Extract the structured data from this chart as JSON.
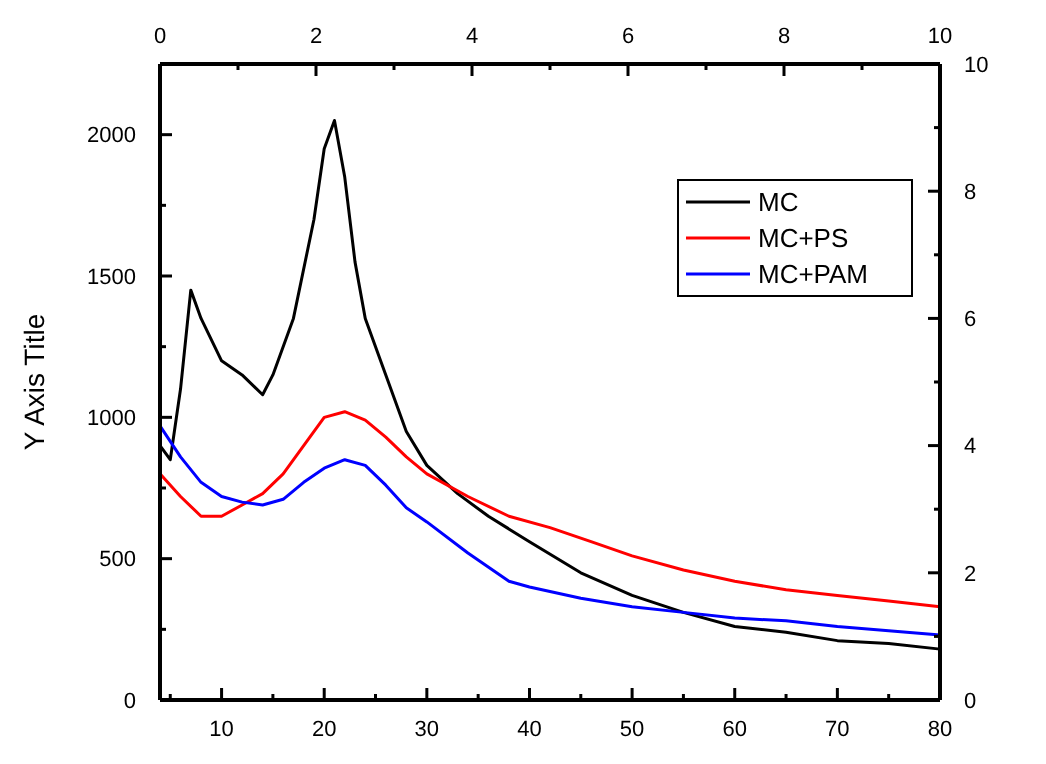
{
  "chart_data": {
    "type": "line",
    "ylabel": "Y Axis Title",
    "xlim": [
      4,
      80
    ],
    "xticks": [
      {
        "value": 5,
        "label": null
      },
      10,
      {
        "value": 15,
        "label": null
      },
      20,
      {
        "value": 25,
        "label": null
      },
      30,
      {
        "value": 35,
        "label": null
      },
      40,
      {
        "value": 45,
        "label": null
      },
      50,
      {
        "value": 55,
        "label": null
      },
      60,
      {
        "value": 65,
        "label": null
      },
      70,
      {
        "value": 75,
        "label": null
      },
      80
    ],
    "ylim": [
      0,
      2250
    ],
    "yticks": [
      0,
      {
        "value": 250,
        "label": null
      },
      500,
      {
        "value": 750,
        "label": null
      },
      1000,
      {
        "value": 1250,
        "label": null
      },
      1500,
      {
        "value": 1750,
        "label": null
      },
      2000
    ],
    "x2lim": [
      0,
      10
    ],
    "x2ticks": [
      0,
      {
        "value": 1,
        "label": null
      },
      2,
      {
        "value": 3,
        "label": null
      },
      4,
      {
        "value": 5,
        "label": null
      },
      6,
      {
        "value": 7,
        "label": null
      },
      8,
      {
        "value": 9,
        "label": null
      },
      10
    ],
    "y2lim": [
      0,
      10
    ],
    "y2ticks": [
      0,
      {
        "value": 1,
        "label": null
      },
      2,
      {
        "value": 3,
        "label": null
      },
      4,
      {
        "value": 5,
        "label": null
      },
      6,
      {
        "value": 7,
        "label": null
      },
      8,
      {
        "value": 9,
        "label": null
      },
      10
    ],
    "legend": "top right",
    "grid": false,
    "marker": "none",
    "line_style": "solid",
    "series": [
      {
        "name": "MC",
        "color": "#000000",
        "x": [
          4,
          5,
          6,
          7,
          8,
          10,
          12,
          14,
          15,
          17,
          19,
          20,
          21,
          22,
          23,
          24,
          26,
          28,
          30,
          33,
          36,
          40,
          45,
          50,
          55,
          60,
          65,
          70,
          75,
          80
        ],
        "values": [
          900,
          850,
          1100,
          1450,
          1350,
          1200,
          1150,
          1080,
          1150,
          1350,
          1700,
          1950,
          2050,
          1850,
          1550,
          1350,
          1150,
          950,
          830,
          730,
          650,
          560,
          450,
          370,
          310,
          260,
          240,
          210,
          200,
          180
        ]
      },
      {
        "name": "MC+PS",
        "color": "#ff0000",
        "x": [
          4,
          6,
          8,
          10,
          12,
          14,
          16,
          18,
          20,
          22,
          24,
          26,
          28,
          30,
          34,
          38,
          42,
          46,
          50,
          55,
          60,
          65,
          70,
          75,
          80
        ],
        "values": [
          800,
          720,
          650,
          650,
          690,
          730,
          800,
          900,
          1000,
          1020,
          990,
          930,
          860,
          800,
          720,
          650,
          610,
          560,
          510,
          460,
          420,
          390,
          370,
          350,
          330
        ]
      },
      {
        "name": "MC+PAM",
        "color": "#0000ff",
        "x": [
          4,
          6,
          8,
          10,
          12,
          14,
          16,
          18,
          20,
          22,
          24,
          26,
          28,
          30,
          34,
          38,
          40,
          45,
          50,
          55,
          60,
          65,
          70,
          75,
          80
        ],
        "values": [
          970,
          860,
          770,
          720,
          700,
          690,
          710,
          770,
          820,
          850,
          830,
          760,
          680,
          630,
          520,
          420,
          400,
          360,
          330,
          310,
          290,
          280,
          260,
          245,
          230
        ]
      }
    ]
  }
}
